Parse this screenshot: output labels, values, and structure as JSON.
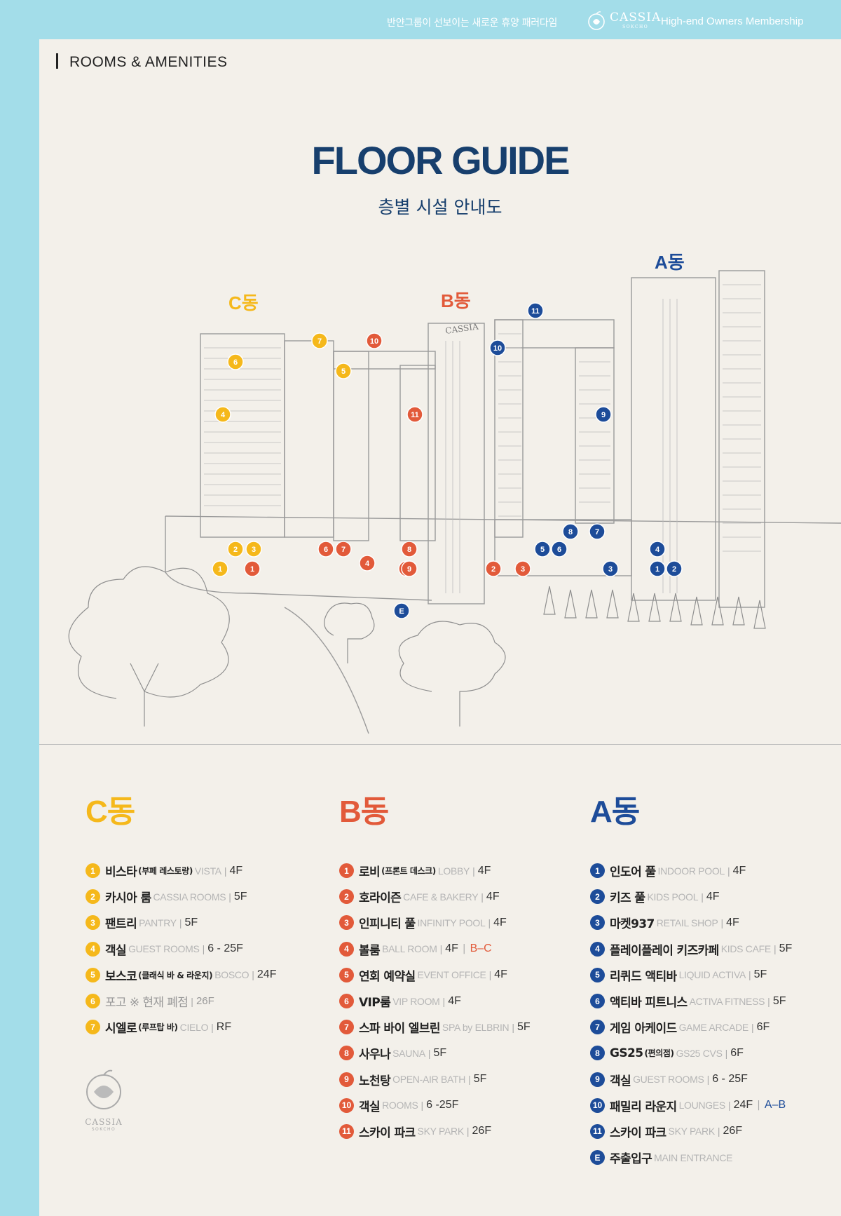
{
  "header": {
    "tagline": "반얀그룹이 선보이는 새로운 휴양 패러다임",
    "brand": "CASSIA",
    "brand_sub": "SOKCHO",
    "membership": "High-end Owners Membership"
  },
  "section_label": "ROOMS & AMENITIES",
  "title": "FLOOR GUIDE",
  "subtitle": "층별 시설 안내도",
  "illustration": {
    "label_c": "C동",
    "label_b": "B동",
    "label_a": "A동",
    "building_sign": "CASSIA",
    "markers": {
      "c": [
        "1",
        "2",
        "3",
        "4",
        "6",
        "7",
        "5"
      ],
      "b": [
        "1",
        "4",
        "5",
        "6",
        "7",
        "8",
        "9",
        "10",
        "11",
        "2",
        "3"
      ],
      "a": [
        "1",
        "2",
        "3",
        "4",
        "5",
        "6",
        "7",
        "8",
        "9",
        "10",
        "11",
        "E"
      ]
    }
  },
  "colors": {
    "c": "#f5b81b",
    "b": "#e25a3a",
    "a": "#1d4c99",
    "title": "#173f6d"
  },
  "columns": {
    "c": {
      "heading": "C동",
      "items": [
        {
          "n": "1",
          "ko": "비스타",
          "note": "(부페 레스토랑)",
          "en": "VISTA",
          "floor": "4F"
        },
        {
          "n": "2",
          "ko": "카시아 룸",
          "note": "",
          "en": "CASSIA ROOMS",
          "floor": "5F"
        },
        {
          "n": "3",
          "ko": "팬트리",
          "note": "",
          "en": "PANTRY",
          "floor": "5F"
        },
        {
          "n": "4",
          "ko": "객실",
          "note": "",
          "en": "GUEST ROOMS",
          "floor": "6 - 25F"
        },
        {
          "n": "5",
          "ko": "보스코",
          "note": "(클래식 바 & 라운지)",
          "en": "BOSCO",
          "floor": "24F"
        },
        {
          "n": "6",
          "ko": "포고 ※ 현재 폐점",
          "note": "",
          "en": "",
          "floor": "26F"
        },
        {
          "n": "7",
          "ko": "시엘로",
          "note": "(루프탑 바)",
          "en": "CIELO",
          "floor": "RF"
        }
      ]
    },
    "b": {
      "heading": "B동",
      "items": [
        {
          "n": "1",
          "ko": "로비",
          "note": "(프론트 데스크)",
          "en": "LOBBY",
          "floor": "4F"
        },
        {
          "n": "2",
          "ko": "호라이즌",
          "note": "",
          "en": "CAFE & BAKERY",
          "floor": "4F"
        },
        {
          "n": "3",
          "ko": "인피니티 풀",
          "note": "",
          "en": "INFINITY POOL",
          "floor": "4F"
        },
        {
          "n": "4",
          "ko": "볼룸",
          "note": "",
          "en": "BALL ROOM",
          "floor": "4F",
          "extra": "B–C"
        },
        {
          "n": "5",
          "ko": "연회 예약실",
          "note": "",
          "en": "EVENT OFFICE",
          "floor": "4F"
        },
        {
          "n": "6",
          "ko": "VIP룸",
          "note": "",
          "en": "VIP ROOM",
          "floor": "4F"
        },
        {
          "n": "7",
          "ko": "스파 바이 엘브린",
          "note": "",
          "en": "SPA by ELBRIN",
          "floor": "5F"
        },
        {
          "n": "8",
          "ko": "사우나",
          "note": "",
          "en": "SAUNA",
          "floor": "5F"
        },
        {
          "n": "9",
          "ko": "노천탕",
          "note": "",
          "en": "OPEN-AIR BATH",
          "floor": "5F"
        },
        {
          "n": "10",
          "ko": "객실",
          "note": "",
          "en": "ROOMS",
          "floor": "6 -25F"
        },
        {
          "n": "11",
          "ko": "스카이 파크",
          "note": "",
          "en": "SKY PARK",
          "floor": "26F"
        }
      ]
    },
    "a": {
      "heading": "A동",
      "items": [
        {
          "n": "1",
          "ko": "인도어 풀",
          "note": "",
          "en": "INDOOR POOL",
          "floor": "4F"
        },
        {
          "n": "2",
          "ko": "키즈 풀",
          "note": "",
          "en": "KIDS POOL",
          "floor": "4F"
        },
        {
          "n": "3",
          "ko": "마켓937",
          "note": "",
          "en": "RETAIL SHOP",
          "floor": "4F"
        },
        {
          "n": "4",
          "ko": "플레이플레이 키즈카페",
          "note": "",
          "en": "KIDS CAFE",
          "floor": "5F"
        },
        {
          "n": "5",
          "ko": "리퀴드 액티바",
          "note": "",
          "en": "LIQUID ACTIVA",
          "floor": "5F"
        },
        {
          "n": "6",
          "ko": "액티바 피트니스",
          "note": "",
          "en": "ACTIVA FITNESS",
          "floor": "5F"
        },
        {
          "n": "7",
          "ko": "게임 아케이드",
          "note": "",
          "en": "GAME ARCADE",
          "floor": "6F"
        },
        {
          "n": "8",
          "ko": "GS25",
          "note": "(편의점)",
          "en": "GS25 CVS",
          "floor": "6F"
        },
        {
          "n": "9",
          "ko": "객실",
          "note": "",
          "en": "GUEST ROOMS",
          "floor": "6 - 25F"
        },
        {
          "n": "10",
          "ko": "패밀리 라운지",
          "note": "",
          "en": "LOUNGES",
          "floor": "24F",
          "extra": "A–B"
        },
        {
          "n": "11",
          "ko": "스카이 파크",
          "note": "",
          "en": "SKY PARK",
          "floor": "26F"
        },
        {
          "n": "E",
          "ko": "주출입구",
          "note": "",
          "en": "MAIN ENTRANCE",
          "floor": ""
        }
      ]
    }
  },
  "footer_logo": {
    "name": "CASSIA",
    "sub": "SOKCHO"
  }
}
